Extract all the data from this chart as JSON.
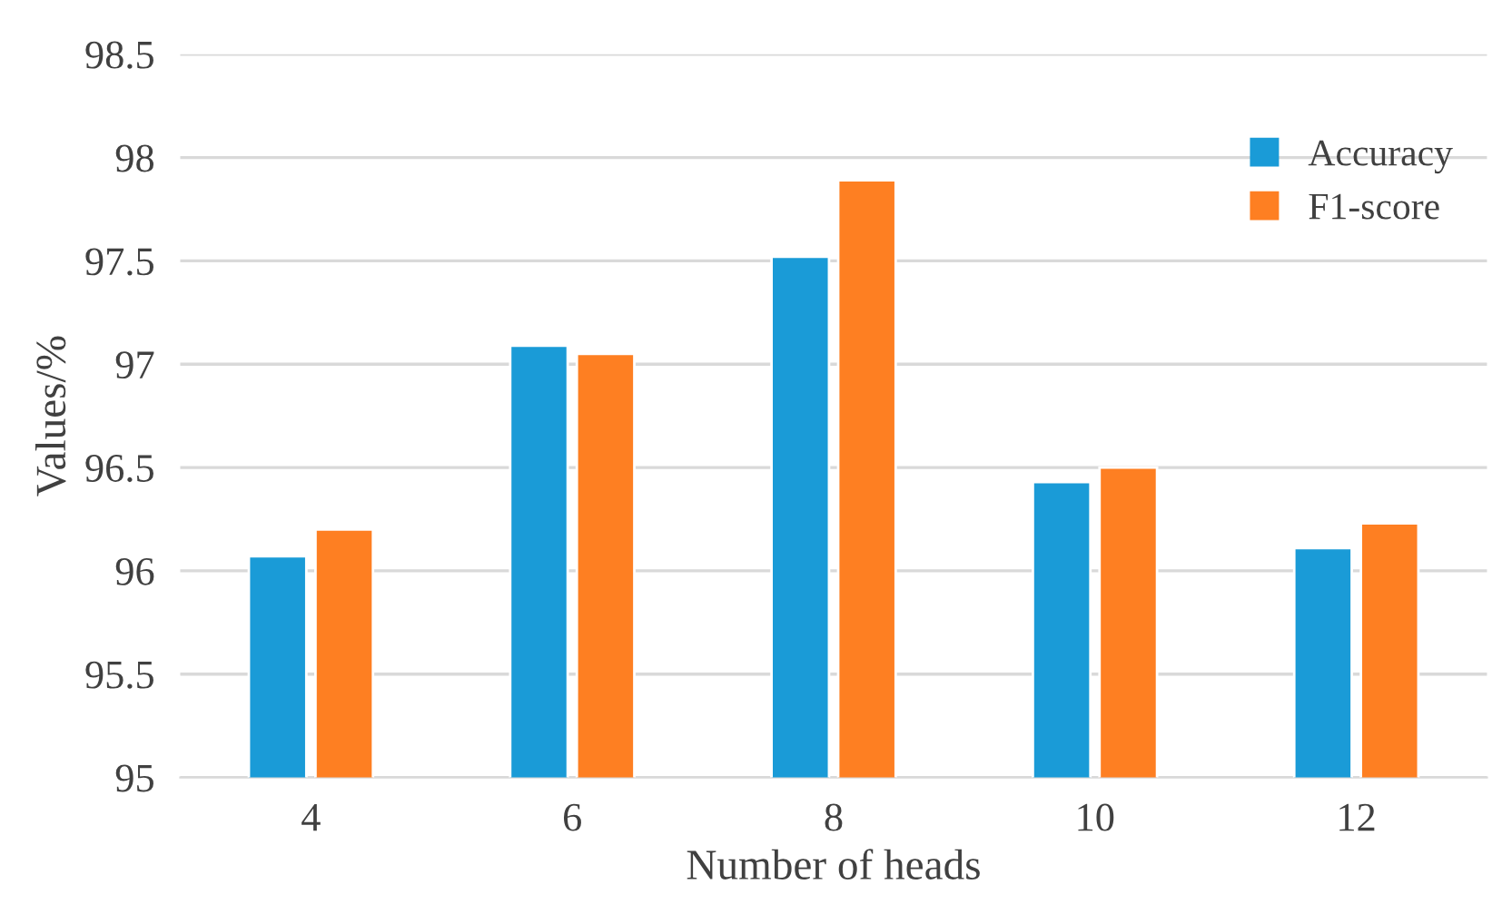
{
  "chart_data": {
    "type": "bar",
    "xlabel": "Number of heads",
    "ylabel": "Values/%",
    "categories": [
      "4",
      "6",
      "8",
      "10",
      "12"
    ],
    "series": [
      {
        "name": "Accuracy",
        "color": "#1a9bd7",
        "values": [
          96.07,
          97.09,
          97.52,
          96.43,
          96.11
        ]
      },
      {
        "name": "F1-score",
        "color": "#fe7f22",
        "values": [
          96.2,
          97.05,
          97.89,
          96.5,
          96.23
        ]
      }
    ],
    "ylim": [
      95,
      98.5
    ],
    "yticks": [
      95,
      95.5,
      96,
      96.5,
      97,
      97.5,
      98,
      98.5
    ],
    "grid": "y",
    "legend": "top right"
  }
}
